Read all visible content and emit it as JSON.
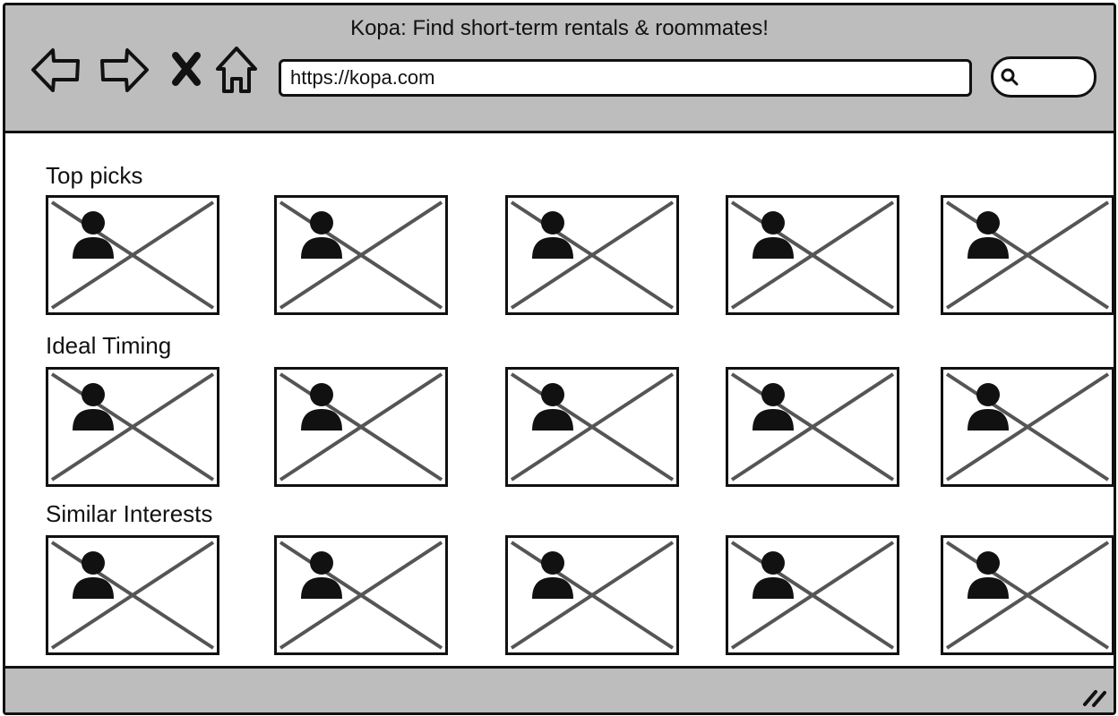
{
  "window": {
    "title": "Kopa: Find short-term rentals & roommates!"
  },
  "toolbar": {
    "back_icon": "back-arrow-icon",
    "forward_icon": "forward-arrow-icon",
    "stop_icon": "close-icon",
    "home_icon": "home-icon",
    "url": "https://kopa.com",
    "search_icon": "search-icon"
  },
  "sections": [
    {
      "title": "Top picks",
      "card_count": 5
    },
    {
      "title": "Ideal Timing",
      "card_count": 5
    },
    {
      "title": "Similar Interests",
      "card_count": 5
    }
  ],
  "colors": {
    "chrome": "#bdbdbd",
    "border": "#111111",
    "placeholder_x": "#555555"
  }
}
